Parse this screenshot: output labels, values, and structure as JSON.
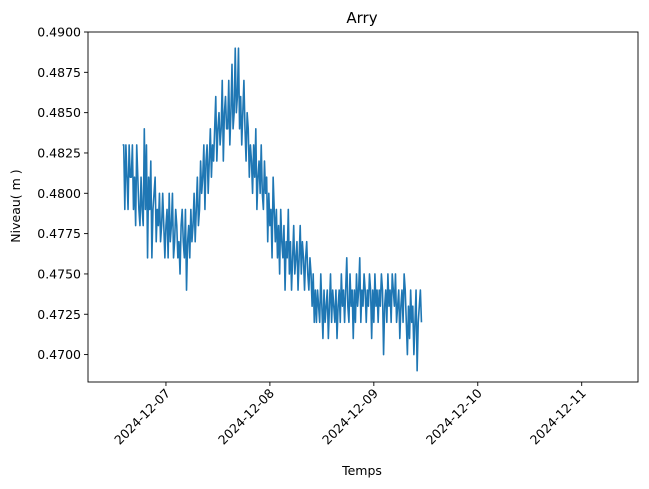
{
  "chart_data": {
    "type": "line",
    "title": "Arry",
    "xlabel": "Temps",
    "ylabel": "Niveau( m )",
    "xlim": [
      "2024-12-06 06:00",
      "2024-12-11 13:00"
    ],
    "ylim": [
      0.4683,
      0.49
    ],
    "x_ticks": [
      "2024-12-07",
      "2024-12-08",
      "2024-12-09",
      "2024-12-10",
      "2024-12-11"
    ],
    "y_ticks": [
      0.47,
      0.4725,
      0.475,
      0.4775,
      0.48,
      0.4825,
      0.485,
      0.4875,
      0.49
    ],
    "y_tick_labels": [
      "0.4700",
      "0.4725",
      "0.4750",
      "0.4775",
      "0.4800",
      "0.4825",
      "0.4850",
      "0.4875",
      "0.4900"
    ],
    "grid": false,
    "line_color": "#1f77b4",
    "series": [
      {
        "start": "2024-12-06 14:00",
        "step_minutes": 15,
        "values_mm": [
          483,
          483,
          479,
          483,
          481,
          479,
          483,
          481,
          481,
          483,
          479,
          481,
          478,
          483,
          481,
          479,
          478,
          481,
          479,
          478,
          484,
          479,
          483,
          476,
          481,
          479,
          482,
          476,
          479,
          480,
          481,
          477,
          479,
          478,
          480,
          477,
          478,
          480,
          478,
          476,
          478,
          479,
          476,
          480,
          477,
          478,
          480,
          476,
          477,
          479,
          478,
          476,
          477,
          475,
          478,
          479,
          477,
          476,
          479,
          474,
          477,
          478,
          476,
          479,
          477,
          478,
          480,
          477,
          479,
          481,
          478,
          479,
          482,
          480,
          481,
          483,
          479,
          482,
          483,
          480,
          482,
          484,
          481,
          483,
          482,
          484,
          486,
          482,
          484,
          485,
          483,
          484,
          487,
          482,
          485,
          486,
          484,
          484,
          487,
          483,
          485,
          488,
          484,
          485,
          489,
          485,
          486,
          489,
          484,
          486,
          483,
          485,
          487,
          484,
          482,
          485,
          484,
          481,
          483,
          482,
          480,
          483,
          481,
          484,
          479,
          481,
          482,
          480,
          483,
          480,
          479,
          482,
          480,
          481,
          477,
          480,
          478,
          479,
          476,
          481,
          479,
          477,
          479,
          476,
          478,
          475,
          479,
          477,
          476,
          478,
          474,
          477,
          476,
          479,
          475,
          477,
          474,
          476,
          478,
          475,
          476,
          477,
          474,
          476,
          478,
          475,
          477,
          476,
          474,
          476,
          477,
          475,
          474,
          476,
          475,
          473,
          475,
          472,
          474,
          472,
          474,
          473,
          472,
          475,
          473,
          471,
          474,
          472,
          473,
          474,
          471,
          473,
          475,
          472,
          474,
          473,
          472,
          474,
          471,
          473,
          474,
          472,
          475,
          473,
          474,
          472,
          474,
          476,
          473,
          472,
          475,
          473,
          474,
          471,
          474,
          472,
          475,
          473,
          474,
          476,
          472,
          474,
          473,
          475,
          474,
          472,
          474,
          473,
          475,
          474,
          471,
          474,
          472,
          475,
          473,
          474,
          472,
          474,
          473,
          475,
          474,
          470,
          473,
          474,
          472,
          475,
          473,
          474,
          472,
          475,
          474,
          473,
          475,
          472,
          473,
          474,
          471,
          473,
          474,
          472,
          475,
          474,
          472,
          470,
          473,
          471,
          474,
          472,
          473,
          470,
          472,
          474,
          469,
          472,
          473,
          474,
          472
        ]
      }
    ]
  }
}
